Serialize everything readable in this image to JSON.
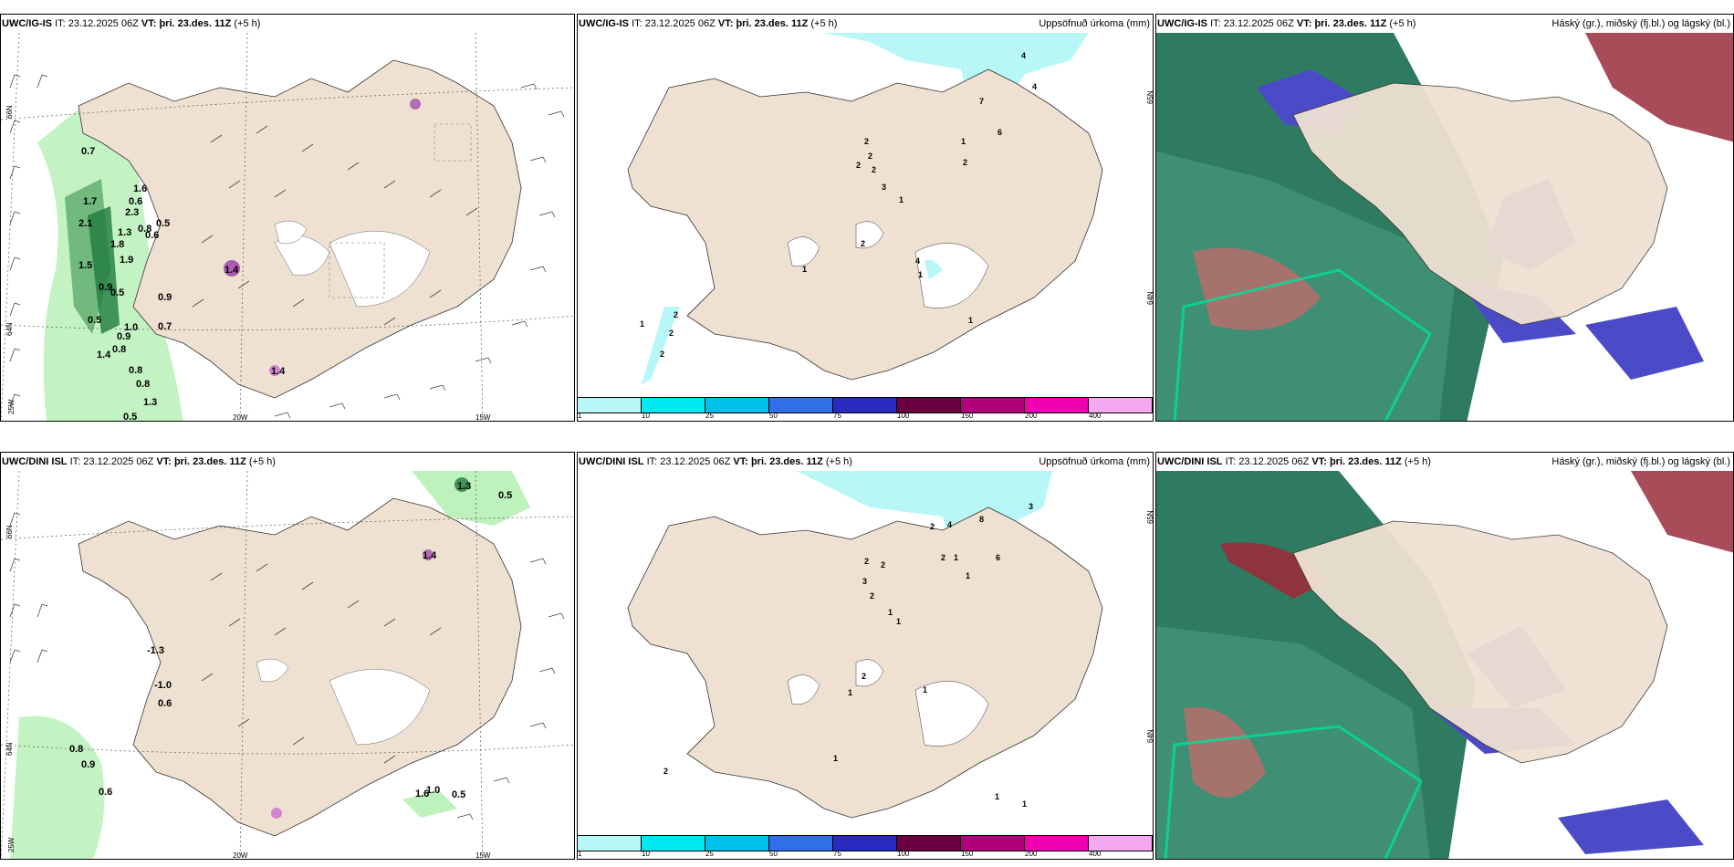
{
  "common": {
    "it_label": "IT:",
    "it_value": "23.12.2025 06Z",
    "vt_label": "VT:",
    "vt_value": "þri. 23.des. 11Z",
    "lead": "(+5 h)"
  },
  "rows": [
    {
      "model": "UWC/IG-IS",
      "wind_panel": {
        "labels": [
          "0.7",
          "1.7",
          "1.6",
          "0.6",
          "2.1",
          "2.3",
          "0.5",
          "0.8",
          "0.6",
          "1.5",
          "0.9",
          "0.5",
          "0.9",
          "0.5",
          "1.0",
          "0.9",
          "0.7",
          "1.4",
          "0.8",
          "0.8",
          "0.8",
          "1.3",
          "0.5",
          "1.4",
          "1.3",
          "1.8",
          "1.9",
          "1.4"
        ],
        "ticks": {
          "lat66": "66N",
          "lat64": "64N",
          "lon25": "25W",
          "lon20": "20W",
          "lon15": "15W"
        }
      },
      "precip_panel": {
        "title": "Uppsöfnuð úrkoma (mm)",
        "labels": [
          "4",
          "4",
          "7",
          "6",
          "1",
          "2",
          "2",
          "2",
          "2",
          "2",
          "3",
          "1",
          "2",
          "1",
          "4",
          "1",
          "1",
          "1",
          "2",
          "2",
          "2"
        ],
        "ticks": {
          "lat65": "65N",
          "lat64": "64N"
        }
      },
      "cloud_panel": {
        "title": "Háský (gr.), miðský (fj.bl.) og lágský (bl.)"
      }
    },
    {
      "model": "UWC/DINI ISL",
      "wind_panel": {
        "labels": [
          "1.3",
          "0.5",
          "1.4",
          "-1.3",
          "-1.0",
          "0.6",
          "0.8",
          "0.9",
          "0.6",
          "1.6",
          "1.0",
          "0.5"
        ],
        "ticks": {
          "lat66": "66N",
          "lat64": "64N",
          "lon25": "25W",
          "lon20": "20W",
          "lon15": "15W"
        }
      },
      "precip_panel": {
        "title": "Uppsöfnuð úrkoma (mm)",
        "labels": [
          "3",
          "4",
          "2",
          "8",
          "2",
          "6",
          "1",
          "1",
          "2",
          "2",
          "3",
          "2",
          "1",
          "1",
          "2",
          "1",
          "1",
          "1",
          "2",
          "1",
          "1"
        ],
        "ticks": {
          "lat65": "65N",
          "lat64": "64N"
        }
      },
      "cloud_panel": {
        "title": "Háský (gr.), miðský (fj.bl.) og lágský (bl.)"
      }
    }
  ],
  "colorbar": {
    "colors": [
      "#b8f7f7",
      "#00e8f0",
      "#00bfe8",
      "#2f6fe8",
      "#2a2ac0",
      "#6b0040",
      "#b0007a",
      "#f000b0",
      "#f4a8f0"
    ],
    "labels": [
      "1",
      "10",
      "25",
      "50",
      "75",
      "100",
      "150",
      "200",
      "400"
    ]
  },
  "colors": {
    "land": "#efe1d2",
    "precip_cyan": "#b8f7f7",
    "green_light": "#bdf2bd",
    "green_dark": "#1f7a3f",
    "cloud_teal": "#2f7b62",
    "cloud_blue": "#4b4bc8",
    "cloud_red": "#9a2b3c"
  }
}
